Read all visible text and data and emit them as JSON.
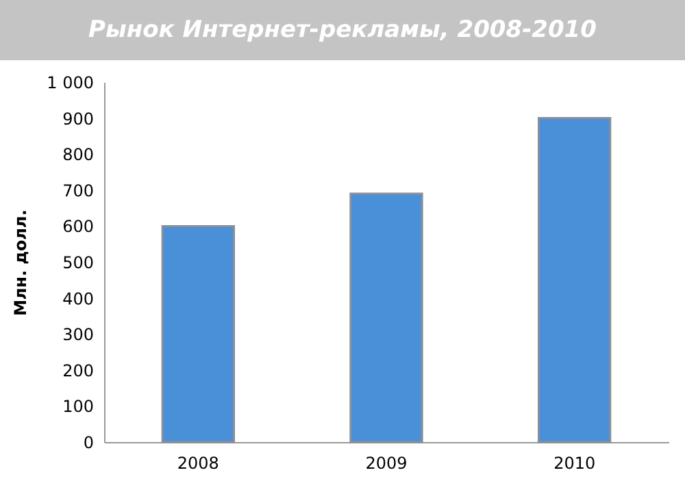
{
  "chart_data": {
    "type": "bar",
    "title": "Рынок Интернет-рекламы, 2008-2010",
    "ylabel": "Млн. долл.",
    "categories": [
      "2008",
      "2009",
      "2010"
    ],
    "values": [
      600,
      690,
      900
    ],
    "color": "#4a90d9",
    "ylim": [
      0,
      1000
    ],
    "yticks": [
      0,
      100,
      200,
      300,
      400,
      500,
      600,
      700,
      800,
      900,
      {
        "value": 1000,
        "label": "1 000"
      }
    ],
    "grid": false
  }
}
